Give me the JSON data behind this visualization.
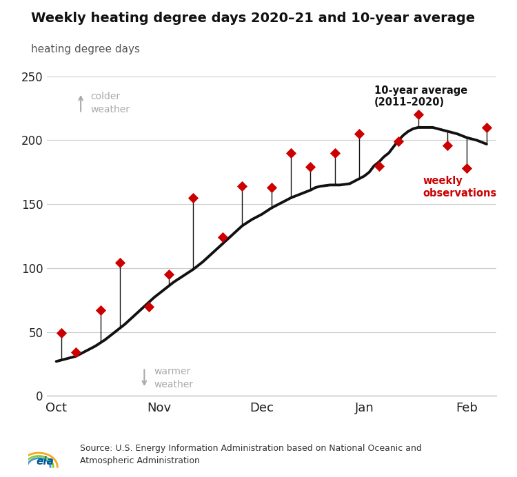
{
  "title": "Weekly heating degree days 2020–21 and 10-year average",
  "ylabel": "heating degree days",
  "ylim": [
    0,
    250
  ],
  "yticks": [
    0,
    50,
    100,
    150,
    200,
    250
  ],
  "bg": "#ffffff",
  "avg_color": "#111111",
  "obs_color": "#cc0000",
  "stem_color": "#111111",
  "grid_color": "#cccccc",
  "annotation_avg": "10-year average\n(2011–2020)",
  "annotation_obs": "weekly\nobservations",
  "source": "Source: U.S. Energy Information Administration based on National Oceanic and\nAtmospheric Administration",
  "avg_x": [
    0,
    2,
    4,
    6,
    8,
    10,
    12,
    14,
    16,
    18,
    20,
    22,
    24,
    26,
    28,
    30,
    32,
    34,
    36,
    38,
    40,
    42,
    44,
    46,
    48,
    50,
    52,
    53,
    54,
    56,
    58,
    60,
    62,
    64,
    66,
    68,
    70,
    72,
    74,
    76,
    78,
    80,
    82,
    84,
    86,
    88
  ],
  "avg_y": [
    27,
    29,
    31,
    35,
    39,
    44,
    50,
    56,
    63,
    70,
    77,
    83,
    89,
    94,
    99,
    105,
    112,
    119,
    126,
    133,
    138,
    142,
    147,
    151,
    155,
    158,
    161,
    163,
    164,
    165,
    165,
    166,
    168,
    172,
    175,
    178,
    181,
    184,
    186,
    188,
    190,
    192,
    193,
    194,
    194,
    195
  ],
  "avg_x2": [
    63,
    64,
    65,
    66,
    67,
    68,
    69,
    70,
    71,
    72,
    73,
    74,
    75,
    76,
    77,
    78,
    79,
    80,
    82,
    84,
    86,
    88
  ],
  "avg_y2": [
    172,
    175,
    180,
    183,
    187,
    190,
    195,
    200,
    204,
    207,
    209,
    210,
    210,
    210,
    210,
    209,
    208,
    207,
    205,
    202,
    200,
    197
  ],
  "obs_x": [
    1,
    4,
    9,
    13,
    19,
    23,
    28,
    34,
    38,
    44,
    48,
    52,
    57,
    62,
    66,
    70,
    74,
    80,
    84,
    88
  ],
  "obs_y": [
    49,
    34,
    67,
    104,
    70,
    95,
    155,
    124,
    164,
    163,
    190,
    179,
    190,
    205,
    180,
    199,
    220,
    196,
    178,
    210
  ],
  "xtick_pos": [
    0,
    21,
    42,
    63,
    84
  ],
  "xtick_labels": [
    "Oct",
    "Nov",
    "Dec",
    "Jan",
    "Feb"
  ],
  "xmin": -2,
  "xmax": 90
}
